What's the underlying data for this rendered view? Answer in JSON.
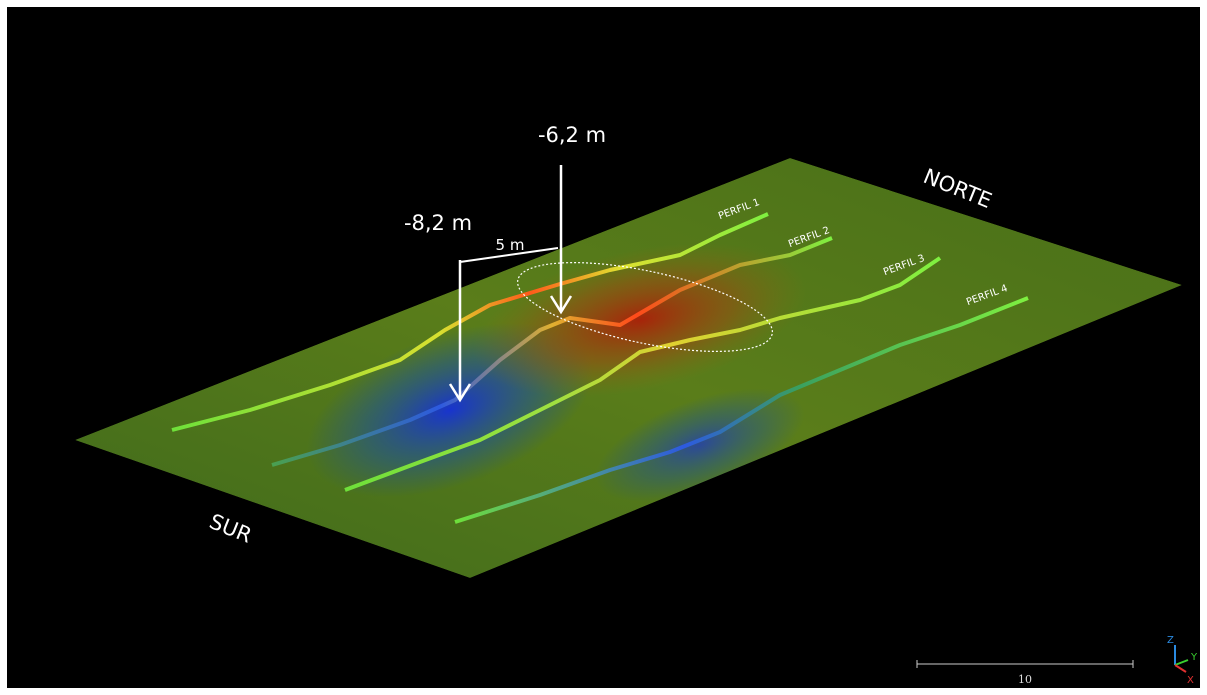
{
  "annotations": {
    "depth_right": "-6,2 m",
    "depth_left": "-8,2 m",
    "distance": "5 m"
  },
  "orientation": {
    "north": "NORTE",
    "south": "SUR"
  },
  "profiles": [
    "PERFIL 1",
    "PERFIL 2",
    "PERFIL 3",
    "PERFIL 4"
  ],
  "scale_bar": {
    "label": "10"
  },
  "axes": {
    "z": "Z",
    "y": "Y",
    "x": "X"
  }
}
